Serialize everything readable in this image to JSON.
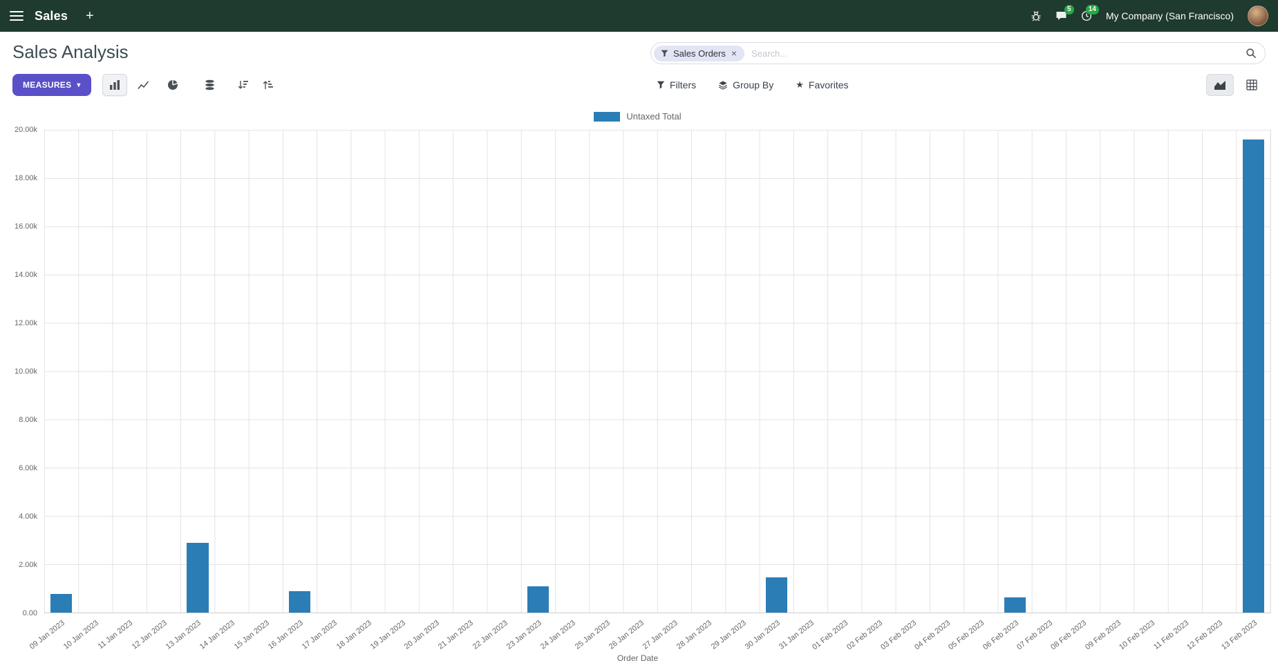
{
  "navbar": {
    "app_name": "Sales",
    "company": "My Company (San Francisco)",
    "message_badge": "5",
    "activity_badge": "14"
  },
  "control_panel": {
    "title": "Sales Analysis",
    "measures_label": "MEASURES",
    "filters_label": "Filters",
    "groupby_label": "Group By",
    "favorites_label": "Favorites",
    "search": {
      "facet": "Sales Orders",
      "placeholder": "Search..."
    }
  },
  "icons": {
    "plus": "+",
    "caret": "▾",
    "close": "×",
    "star": "★"
  },
  "colors": {
    "navbar-bg": "#1f3a2f",
    "primary": "#5a50c8",
    "bar": "#2b7db6",
    "badge": "#28a745",
    "facet-bg": "#e2e5f3"
  },
  "chart_data": {
    "type": "bar",
    "title": "",
    "legend": "Untaxed Total",
    "legend_position": "top",
    "grid": true,
    "xlabel": "Order Date",
    "ylabel": "",
    "ylim": [
      0,
      20000
    ],
    "yticks": [
      "20.00k",
      "18.00k",
      "16.00k",
      "14.00k",
      "12.00k",
      "10.00k",
      "8.00k",
      "6.00k",
      "4.00k",
      "2.00k",
      "0.00"
    ],
    "categories": [
      "09 Jan 2023",
      "10 Jan 2023",
      "11 Jan 2023",
      "12 Jan 2023",
      "13 Jan 2023",
      "14 Jan 2023",
      "15 Jan 2023",
      "16 Jan 2023",
      "17 Jan 2023",
      "18 Jan 2023",
      "19 Jan 2023",
      "20 Jan 2023",
      "21 Jan 2023",
      "22 Jan 2023",
      "23 Jan 2023",
      "24 Jan 2023",
      "25 Jan 2023",
      "26 Jan 2023",
      "27 Jan 2023",
      "28 Jan 2023",
      "29 Jan 2023",
      "30 Jan 2023",
      "31 Jan 2023",
      "01 Feb 2023",
      "02 Feb 2023",
      "03 Feb 2023",
      "04 Feb 2023",
      "05 Feb 2023",
      "06 Feb 2023",
      "07 Feb 2023",
      "08 Feb 2023",
      "09 Feb 2023",
      "10 Feb 2023",
      "11 Feb 2023",
      "12 Feb 2023",
      "13 Feb 2023"
    ],
    "series": [
      {
        "name": "Untaxed Total",
        "values": [
          780,
          0,
          0,
          0,
          2900,
          0,
          0,
          900,
          0,
          0,
          0,
          0,
          0,
          0,
          1080,
          0,
          0,
          0,
          0,
          0,
          0,
          1460,
          0,
          0,
          0,
          0,
          0,
          0,
          620,
          0,
          0,
          0,
          0,
          0,
          0,
          19600
        ]
      }
    ]
  }
}
